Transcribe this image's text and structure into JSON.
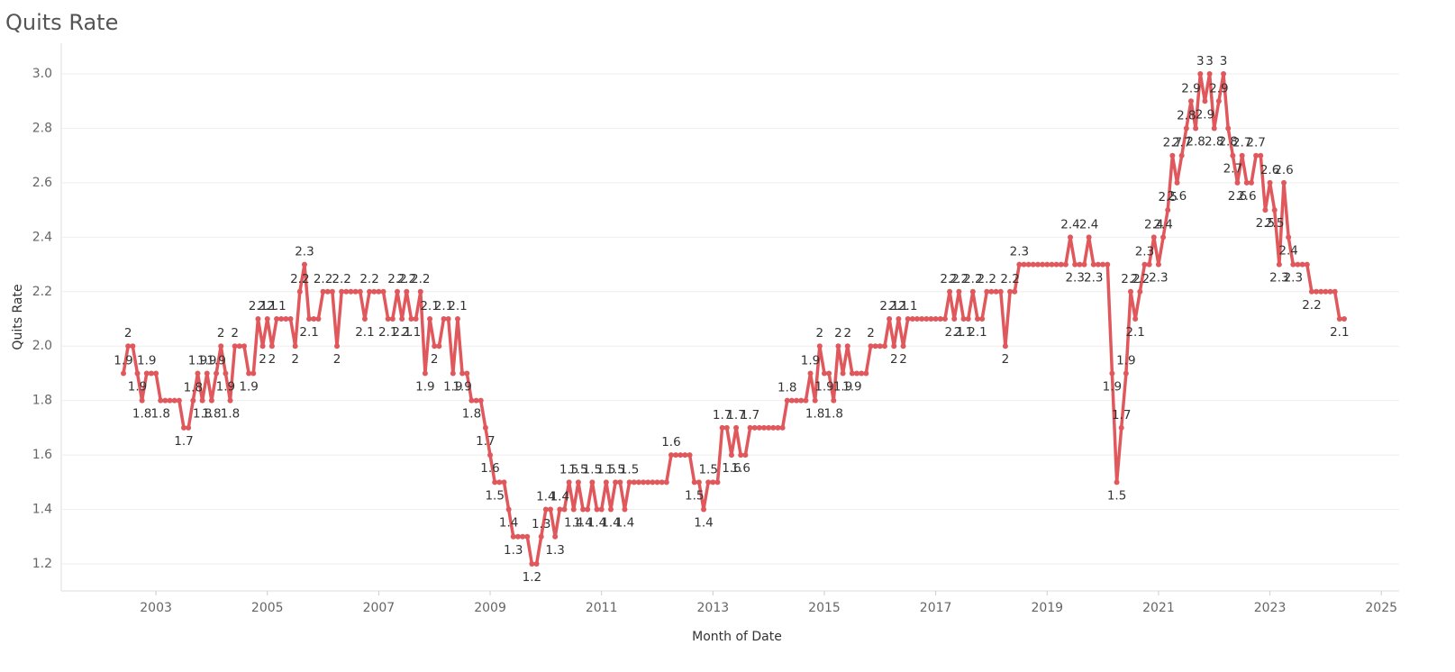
{
  "chart_data": {
    "type": "line",
    "title": "Quits Rate",
    "x_label": "Month of Date",
    "y_label": "Quits Rate",
    "x": [
      "2002-06",
      "2002-07",
      "2002-08",
      "2002-09",
      "2002-10",
      "2002-11",
      "2002-12",
      "2003-01",
      "2003-02",
      "2003-03",
      "2003-04",
      "2003-05",
      "2003-06",
      "2003-07",
      "2003-08",
      "2003-09",
      "2003-10",
      "2003-11",
      "2003-12",
      "2004-01",
      "2004-02",
      "2004-03",
      "2004-04",
      "2004-05",
      "2004-06",
      "2004-07",
      "2004-08",
      "2004-09",
      "2004-10",
      "2004-11",
      "2004-12",
      "2005-01",
      "2005-02",
      "2005-03",
      "2005-04",
      "2005-05",
      "2005-06",
      "2005-07",
      "2005-08",
      "2005-09",
      "2005-10",
      "2005-11",
      "2005-12",
      "2006-01",
      "2006-02",
      "2006-03",
      "2006-04",
      "2006-05",
      "2006-06",
      "2006-07",
      "2006-08",
      "2006-09",
      "2006-10",
      "2006-11",
      "2006-12",
      "2007-01",
      "2007-02",
      "2007-03",
      "2007-04",
      "2007-05",
      "2007-06",
      "2007-07",
      "2007-08",
      "2007-09",
      "2007-10",
      "2007-11",
      "2007-12",
      "2008-01",
      "2008-02",
      "2008-03",
      "2008-04",
      "2008-05",
      "2008-06",
      "2008-07",
      "2008-08",
      "2008-09",
      "2008-10",
      "2008-11",
      "2008-12",
      "2009-01",
      "2009-02",
      "2009-03",
      "2009-04",
      "2009-05",
      "2009-06",
      "2009-07",
      "2009-08",
      "2009-09",
      "2009-10",
      "2009-11",
      "2009-12",
      "2010-01",
      "2010-02",
      "2010-03",
      "2010-04",
      "2010-05",
      "2010-06",
      "2010-07",
      "2010-08",
      "2010-09",
      "2010-10",
      "2010-11",
      "2010-12",
      "2011-01",
      "2011-02",
      "2011-03",
      "2011-04",
      "2011-05",
      "2011-06",
      "2011-07",
      "2011-08",
      "2011-09",
      "2011-10",
      "2011-11",
      "2011-12",
      "2012-01",
      "2012-02",
      "2012-03",
      "2012-04",
      "2012-05",
      "2012-06",
      "2012-07",
      "2012-08",
      "2012-09",
      "2012-10",
      "2012-11",
      "2012-12",
      "2013-01",
      "2013-02",
      "2013-03",
      "2013-04",
      "2013-05",
      "2013-06",
      "2013-07",
      "2013-08",
      "2013-09",
      "2013-10",
      "2013-11",
      "2013-12",
      "2014-01",
      "2014-02",
      "2014-03",
      "2014-04",
      "2014-05",
      "2014-06",
      "2014-07",
      "2014-08",
      "2014-09",
      "2014-10",
      "2014-11",
      "2014-12",
      "2015-01",
      "2015-02",
      "2015-03",
      "2015-04",
      "2015-05",
      "2015-06",
      "2015-07",
      "2015-08",
      "2015-09",
      "2015-10",
      "2015-11",
      "2015-12",
      "2016-01",
      "2016-02",
      "2016-03",
      "2016-04",
      "2016-05",
      "2016-06",
      "2016-07",
      "2016-08",
      "2016-09",
      "2016-10",
      "2016-11",
      "2016-12",
      "2017-01",
      "2017-02",
      "2017-03",
      "2017-04",
      "2017-05",
      "2017-06",
      "2017-07",
      "2017-08",
      "2017-09",
      "2017-10",
      "2017-11",
      "2017-12",
      "2018-01",
      "2018-02",
      "2018-03",
      "2018-04",
      "2018-05",
      "2018-06",
      "2018-07",
      "2018-08",
      "2018-09",
      "2018-10",
      "2018-11",
      "2018-12",
      "2019-01",
      "2019-02",
      "2019-03",
      "2019-04",
      "2019-05",
      "2019-06",
      "2019-07",
      "2019-08",
      "2019-09",
      "2019-10",
      "2019-11",
      "2019-12",
      "2020-01",
      "2020-02",
      "2020-03",
      "2020-04",
      "2020-05",
      "2020-06",
      "2020-07",
      "2020-08",
      "2020-09",
      "2020-10",
      "2020-11",
      "2020-12",
      "2021-01",
      "2021-02",
      "2021-03",
      "2021-04",
      "2021-05",
      "2021-06",
      "2021-07",
      "2021-08",
      "2021-09",
      "2021-10",
      "2021-11",
      "2021-12",
      "2022-01",
      "2022-02",
      "2022-03",
      "2022-04",
      "2022-05",
      "2022-06",
      "2022-07",
      "2022-08",
      "2022-09",
      "2022-10",
      "2022-11",
      "2022-12",
      "2023-01",
      "2023-02",
      "2023-03",
      "2023-04",
      "2023-05",
      "2023-06",
      "2023-07",
      "2023-08",
      "2023-09",
      "2023-10",
      "2023-11",
      "2023-12",
      "2024-01",
      "2024-02",
      "2024-03",
      "2024-04",
      "2024-05"
    ],
    "series": [
      {
        "name": "Quits Rate",
        "color": "#e0585c",
        "values": [
          1.9,
          2.0,
          2.0,
          1.9,
          1.8,
          1.9,
          1.9,
          1.9,
          1.8,
          1.8,
          1.8,
          1.8,
          1.8,
          1.7,
          1.7,
          1.8,
          1.9,
          1.8,
          1.9,
          1.8,
          1.9,
          2.0,
          1.9,
          1.8,
          2.0,
          2.0,
          2.0,
          1.9,
          1.9,
          2.1,
          2.0,
          2.1,
          2.0,
          2.1,
          2.1,
          2.1,
          2.1,
          2.0,
          2.2,
          2.3,
          2.1,
          2.1,
          2.1,
          2.2,
          2.2,
          2.2,
          2.0,
          2.2,
          2.2,
          2.2,
          2.2,
          2.2,
          2.1,
          2.2,
          2.2,
          2.2,
          2.2,
          2.1,
          2.1,
          2.2,
          2.1,
          2.2,
          2.1,
          2.1,
          2.2,
          1.9,
          2.1,
          2.0,
          2.0,
          2.1,
          2.1,
          1.9,
          2.1,
          1.9,
          1.9,
          1.8,
          1.8,
          1.8,
          1.7,
          1.6,
          1.5,
          1.5,
          1.5,
          1.4,
          1.3,
          1.3,
          1.3,
          1.3,
          1.2,
          1.2,
          1.3,
          1.4,
          1.4,
          1.3,
          1.4,
          1.4,
          1.5,
          1.4,
          1.5,
          1.4,
          1.4,
          1.5,
          1.4,
          1.4,
          1.5,
          1.4,
          1.5,
          1.5,
          1.4,
          1.5,
          1.5,
          1.5,
          1.5,
          1.5,
          1.5,
          1.5,
          1.5,
          1.5,
          1.6,
          1.6,
          1.6,
          1.6,
          1.6,
          1.5,
          1.5,
          1.4,
          1.5,
          1.5,
          1.5,
          1.7,
          1.7,
          1.6,
          1.7,
          1.6,
          1.6,
          1.7,
          1.7,
          1.7,
          1.7,
          1.7,
          1.7,
          1.7,
          1.7,
          1.8,
          1.8,
          1.8,
          1.8,
          1.8,
          1.9,
          1.8,
          2.0,
          1.9,
          1.9,
          1.8,
          2.0,
          1.9,
          2.0,
          1.9,
          1.9,
          1.9,
          1.9,
          2.0,
          2.0,
          2.0,
          2.0,
          2.1,
          2.0,
          2.1,
          2.0,
          2.1,
          2.1,
          2.1,
          2.1,
          2.1,
          2.1,
          2.1,
          2.1,
          2.1,
          2.2,
          2.1,
          2.2,
          2.1,
          2.1,
          2.2,
          2.1,
          2.1,
          2.2,
          2.2,
          2.2,
          2.2,
          2.0,
          2.2,
          2.2,
          2.3,
          2.3,
          2.3,
          2.3,
          2.3,
          2.3,
          2.3,
          2.3,
          2.3,
          2.3,
          2.3,
          2.4,
          2.3,
          2.3,
          2.3,
          2.4,
          2.3,
          2.3,
          2.3,
          2.3,
          1.9,
          1.5,
          1.7,
          1.9,
          2.2,
          2.1,
          2.2,
          2.3,
          2.3,
          2.4,
          2.3,
          2.4,
          2.5,
          2.7,
          2.6,
          2.7,
          2.8,
          2.9,
          2.8,
          3.0,
          2.9,
          3.0,
          2.8,
          2.9,
          3.0,
          2.8,
          2.7,
          2.6,
          2.7,
          2.6,
          2.6,
          2.7,
          2.7,
          2.5,
          2.6,
          2.5,
          2.3,
          2.6,
          2.4,
          2.3,
          2.3,
          2.3,
          2.3,
          2.2,
          2.2,
          2.2,
          2.2,
          2.2,
          2.2,
          2.1,
          2.1
        ]
      }
    ],
    "xlim": [
      2001.3,
      2025.32
    ],
    "xticks": [
      2003,
      2005,
      2007,
      2009,
      2011,
      2013,
      2015,
      2017,
      2019,
      2021,
      2023,
      2025
    ],
    "ylim": [
      1.104,
      3.106
    ],
    "yticks": [
      1.2,
      1.4,
      1.6,
      1.8,
      {
        "value": 2,
        "label": "2.0"
      },
      2.2,
      2.4,
      2.6,
      2.8,
      {
        "value": 3,
        "label": "3.0"
      }
    ],
    "grid": true
  }
}
